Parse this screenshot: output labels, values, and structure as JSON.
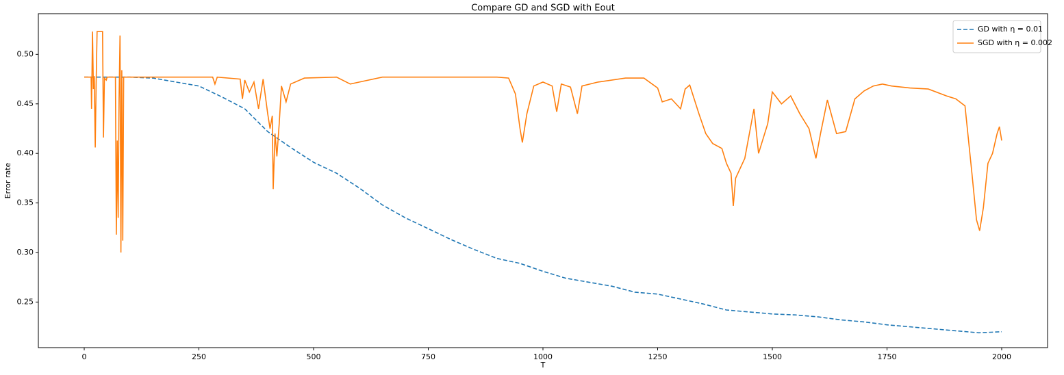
{
  "chart_data": {
    "type": "line",
    "title": "Compare GD and SGD with Eout",
    "xlabel": "T",
    "ylabel": "Error rate",
    "xlim": [
      -100,
      2100
    ],
    "xticks": [
      0,
      250,
      500,
      750,
      1000,
      1250,
      1500,
      1750,
      2000
    ],
    "ylim": [
      0.204,
      0.541
    ],
    "yticks": [
      0.25,
      {
        "value": 0.3,
        "label": "0.30"
      },
      0.35,
      {
        "value": 0.4,
        "label": "0.40"
      },
      0.45,
      {
        "value": 0.5,
        "label": "0.50"
      }
    ],
    "legend": "upper right",
    "series": [
      {
        "name": "GD with η = 0.01",
        "color": "#1f77b4",
        "dash": true,
        "x": [
          0,
          50,
          100,
          150,
          200,
          250,
          300,
          350,
          400,
          450,
          500,
          550,
          600,
          650,
          700,
          750,
          800,
          850,
          900,
          950,
          1000,
          1050,
          1100,
          1150,
          1200,
          1250,
          1300,
          1350,
          1400,
          1450,
          1500,
          1550,
          1600,
          1650,
          1700,
          1750,
          1800,
          1850,
          1900,
          1950,
          2000
        ],
        "values": [
          0.477,
          0.477,
          0.477,
          0.476,
          0.472,
          0.468,
          0.457,
          0.445,
          0.422,
          0.406,
          0.391,
          0.38,
          0.365,
          0.348,
          0.335,
          0.324,
          0.313,
          0.303,
          0.294,
          0.289,
          0.281,
          0.274,
          0.27,
          0.266,
          0.26,
          0.258,
          0.253,
          0.248,
          0.242,
          0.24,
          0.238,
          0.237,
          0.235,
          0.232,
          0.23,
          0.227,
          0.225,
          0.223,
          0.221,
          0.219,
          0.22
        ]
      },
      {
        "name": "SGD with η = 0.002",
        "color": "#ff7f0e",
        "dash": false,
        "x": [
          0,
          15,
          16,
          18,
          20,
          22,
          24,
          26,
          28,
          40,
          42,
          44,
          48,
          50,
          68,
          70,
          72,
          74,
          76,
          78,
          80,
          82,
          84,
          86,
          100,
          280,
          285,
          290,
          340,
          345,
          350,
          360,
          370,
          380,
          390,
          400,
          405,
          410,
          412,
          416,
          420,
          425,
          430,
          440,
          450,
          480,
          550,
          580,
          600,
          650,
          900,
          925,
          940,
          950,
          955,
          965,
          980,
          1000,
          1020,
          1030,
          1040,
          1060,
          1075,
          1085,
          1120,
          1180,
          1220,
          1250,
          1260,
          1280,
          1300,
          1310,
          1320,
          1340,
          1355,
          1370,
          1390,
          1400,
          1410,
          1415,
          1420,
          1440,
          1460,
          1470,
          1490,
          1500,
          1520,
          1540,
          1560,
          1580,
          1595,
          1605,
          1620,
          1640,
          1660,
          1680,
          1700,
          1720,
          1740,
          1760,
          1800,
          1840,
          1880,
          1900,
          1920,
          1935,
          1945,
          1952,
          1960,
          1970,
          1980,
          1990,
          1995,
          2000
        ],
        "values": [
          0.477,
          0.477,
          0.445,
          0.523,
          0.465,
          0.478,
          0.406,
          0.47,
          0.523,
          0.523,
          0.416,
          0.476,
          0.474,
          0.477,
          0.477,
          0.318,
          0.413,
          0.335,
          0.455,
          0.519,
          0.3,
          0.484,
          0.312,
          0.477,
          0.477,
          0.477,
          0.47,
          0.477,
          0.475,
          0.455,
          0.474,
          0.462,
          0.472,
          0.445,
          0.475,
          0.44,
          0.425,
          0.438,
          0.364,
          0.42,
          0.397,
          0.43,
          0.468,
          0.452,
          0.47,
          0.476,
          0.477,
          0.47,
          0.472,
          0.477,
          0.477,
          0.476,
          0.46,
          0.425,
          0.411,
          0.44,
          0.468,
          0.472,
          0.468,
          0.442,
          0.47,
          0.467,
          0.44,
          0.468,
          0.472,
          0.476,
          0.476,
          0.466,
          0.452,
          0.455,
          0.445,
          0.465,
          0.469,
          0.44,
          0.42,
          0.41,
          0.405,
          0.39,
          0.38,
          0.347,
          0.375,
          0.395,
          0.445,
          0.4,
          0.43,
          0.462,
          0.45,
          0.458,
          0.44,
          0.425,
          0.395,
          0.42,
          0.454,
          0.42,
          0.422,
          0.455,
          0.463,
          0.468,
          0.47,
          0.468,
          0.466,
          0.465,
          0.458,
          0.455,
          0.448,
          0.38,
          0.333,
          0.322,
          0.345,
          0.39,
          0.4,
          0.42,
          0.427,
          0.413
        ]
      }
    ]
  }
}
